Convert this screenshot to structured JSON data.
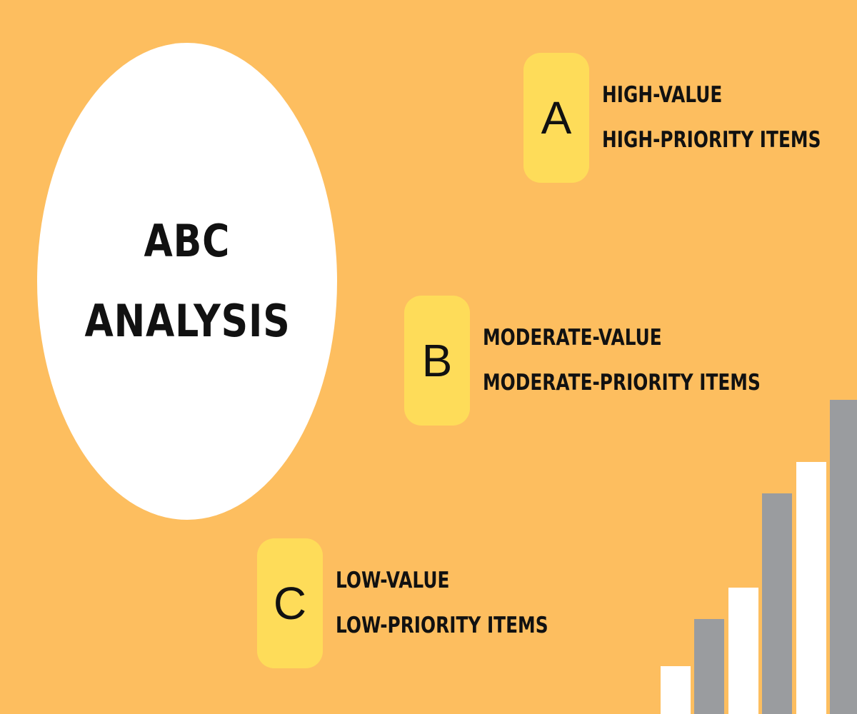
{
  "colors": {
    "background": "#FDBE5F",
    "circle": "#FFFFFF",
    "badge": "#FEDC59",
    "text": "#111111",
    "bar_light": "#FFFFFF",
    "bar_dark": "#9A9C9F"
  },
  "title": {
    "line1": "ABC",
    "line2": "ANALYSIS"
  },
  "tiers": [
    {
      "letter": "A",
      "line1": "HIGH-VALUE",
      "line2": "HIGH-PRIORITY ITEMS"
    },
    {
      "letter": "B",
      "line1": "MODERATE-VALUE",
      "line2": "MODERATE-PRIORITY ITEMS"
    },
    {
      "letter": "C",
      "line1": "LOW-VALUE",
      "line2": "LOW-PRIORITY ITEMS"
    }
  ],
  "decor_bars": [
    {
      "level": 0.152,
      "tone": "light"
    },
    {
      "level": 0.302,
      "tone": "dark"
    },
    {
      "level": 0.402,
      "tone": "light"
    },
    {
      "level": 0.702,
      "tone": "dark"
    },
    {
      "level": 0.802,
      "tone": "light"
    },
    {
      "level": 1.0,
      "tone": "dark"
    }
  ]
}
